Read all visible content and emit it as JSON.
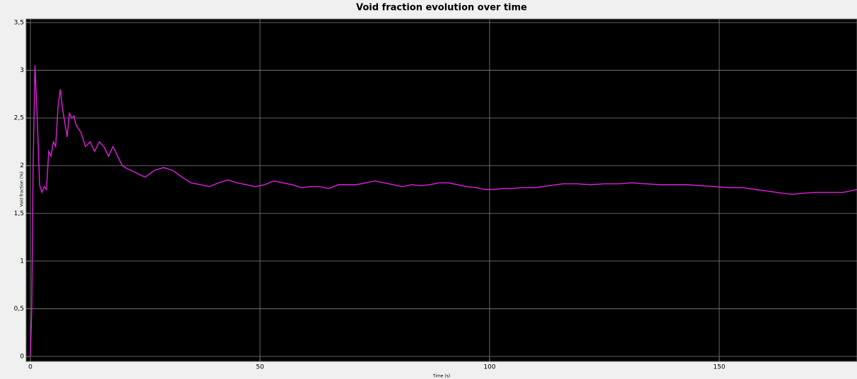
{
  "chart_data": {
    "type": "line",
    "title": "Void fraction evolution over time",
    "x_label": "Time (s)",
    "y_label": "Void fraction (%)",
    "x": [
      0,
      0.3,
      0.6,
      1,
      1.5,
      2,
      2.5,
      3,
      3.5,
      4,
      4.5,
      5,
      5.5,
      6,
      6.5,
      7,
      7.5,
      8,
      8.5,
      9,
      9.5,
      10,
      11,
      12,
      13,
      14,
      15,
      16,
      17,
      18,
      19,
      20,
      21,
      22,
      24,
      25,
      27,
      29,
      31,
      33,
      35,
      37,
      39,
      41,
      43,
      45,
      47,
      49,
      51,
      53,
      55,
      57,
      59,
      61,
      63,
      65,
      67,
      69,
      71,
      73,
      75,
      77,
      79,
      81,
      83,
      85,
      87,
      89,
      91,
      93,
      95,
      97,
      99,
      101,
      103,
      105,
      107,
      110,
      113,
      116,
      119,
      122,
      125,
      128,
      131,
      134,
      137,
      140,
      143,
      146,
      149,
      152,
      155,
      158,
      161,
      164,
      166,
      168,
      171,
      174,
      177,
      180
    ],
    "series": [
      {
        "name": "Void fraction",
        "color": "#e020e0",
        "values": [
          0,
          0.5,
          2.0,
          3.05,
          2.5,
          1.8,
          1.72,
          1.78,
          1.75,
          2.15,
          2.1,
          2.25,
          2.2,
          2.6,
          2.8,
          2.6,
          2.45,
          2.3,
          2.55,
          2.5,
          2.52,
          2.42,
          2.35,
          2.2,
          2.25,
          2.15,
          2.25,
          2.2,
          2.1,
          2.2,
          2.1,
          2.0,
          1.97,
          1.95,
          1.9,
          1.88,
          1.95,
          1.98,
          1.95,
          1.88,
          1.82,
          1.8,
          1.78,
          1.82,
          1.85,
          1.82,
          1.8,
          1.78,
          1.8,
          1.84,
          1.82,
          1.8,
          1.77,
          1.78,
          1.78,
          1.76,
          1.8,
          1.8,
          1.8,
          1.82,
          1.84,
          1.82,
          1.8,
          1.78,
          1.8,
          1.79,
          1.8,
          1.82,
          1.82,
          1.8,
          1.78,
          1.77,
          1.75,
          1.75,
          1.76,
          1.76,
          1.77,
          1.77,
          1.79,
          1.81,
          1.81,
          1.8,
          1.81,
          1.81,
          1.82,
          1.81,
          1.8,
          1.8,
          1.8,
          1.79,
          1.78,
          1.77,
          1.77,
          1.75,
          1.73,
          1.71,
          1.7,
          1.71,
          1.72,
          1.72,
          1.72,
          1.75
        ]
      }
    ],
    "xlim": [
      0,
      180
    ],
    "xticks": [
      0,
      50,
      100,
      150
    ],
    "ylim": [
      0,
      3.5
    ],
    "yticks": [
      0,
      {
        "value": 0.5,
        "label": "0,5"
      },
      1,
      {
        "value": 1.5,
        "label": "1,5"
      },
      2,
      {
        "value": 2.5,
        "label": "2,5"
      },
      3,
      {
        "value": 3.5,
        "label": "3,5"
      }
    ],
    "grid": true,
    "background": "#000000",
    "grid_color": "#808080"
  }
}
